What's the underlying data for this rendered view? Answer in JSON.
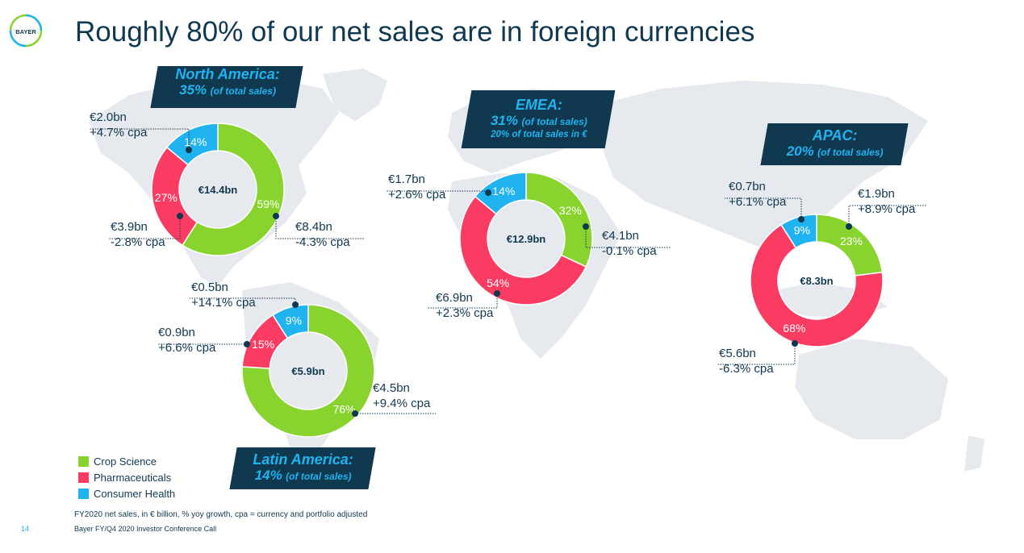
{
  "header": {
    "title": "Roughly 80% of our net sales are in foreign currencies",
    "logo_text": "BAYER"
  },
  "colors": {
    "crop_science": "#89d32f",
    "pharmaceuticals": "#fb3c62",
    "consumer_health": "#1fb4f0",
    "navy": "#10384f",
    "map": "#e6e9ed"
  },
  "legend": [
    {
      "label": "Crop Science",
      "color": "#89d32f"
    },
    {
      "label": "Pharmaceuticals",
      "color": "#fb3c62"
    },
    {
      "label": "Consumer Health",
      "color": "#1fb4f0"
    }
  ],
  "regions": [
    {
      "name": "North America:",
      "share": "35%",
      "share_note": "(of total sales)",
      "extra": ""
    },
    {
      "name": "EMEA:",
      "share": "31%",
      "share_note": "(of total sales)",
      "extra": "20% of total sales in €"
    },
    {
      "name": "APAC:",
      "share": "20%",
      "share_note": "(of total sales)",
      "extra": ""
    },
    {
      "name": "Latin America:",
      "share": "14%",
      "share_note": "(of total sales)",
      "extra": ""
    }
  ],
  "chart_data": [
    {
      "type": "pie",
      "region": "North America",
      "total": "€14.4bn",
      "categories": [
        "Crop Science",
        "Pharmaceuticals",
        "Consumer Health"
      ],
      "values": [
        59,
        27,
        14
      ],
      "value_labels": [
        "59%",
        "27%",
        "14%"
      ],
      "annotations": [
        {
          "amount": "€8.4bn",
          "growth": "-4.3% cpa"
        },
        {
          "amount": "€3.9bn",
          "growth": "-2.8% cpa"
        },
        {
          "amount": "€2.0bn",
          "growth": "+4.7% cpa"
        }
      ]
    },
    {
      "type": "pie",
      "region": "EMEA",
      "total": "€12.9bn",
      "categories": [
        "Crop Science",
        "Pharmaceuticals",
        "Consumer Health"
      ],
      "values": [
        32,
        54,
        14
      ],
      "value_labels": [
        "32%",
        "54%",
        "14%"
      ],
      "annotations": [
        {
          "amount": "€4.1bn",
          "growth": "-0.1% cpa"
        },
        {
          "amount": "€6.9bn",
          "growth": "+2.3% cpa"
        },
        {
          "amount": "€1.7bn",
          "growth": "+2.6% cpa"
        }
      ]
    },
    {
      "type": "pie",
      "region": "APAC",
      "total": "€8.3bn",
      "categories": [
        "Crop Science",
        "Pharmaceuticals",
        "Consumer Health"
      ],
      "values": [
        23,
        68,
        9
      ],
      "value_labels": [
        "23%",
        "68%",
        "9%"
      ],
      "annotations": [
        {
          "amount": "€1.9bn",
          "growth": "+8.9% cpa"
        },
        {
          "amount": "€5.6bn",
          "growth": "-6.3% cpa"
        },
        {
          "amount": "€0.7bn",
          "growth": "+6.1% cpa"
        }
      ]
    },
    {
      "type": "pie",
      "region": "Latin America",
      "total": "€5.9bn",
      "categories": [
        "Crop Science",
        "Pharmaceuticals",
        "Consumer Health"
      ],
      "values": [
        76,
        15,
        9
      ],
      "value_labels": [
        "76%",
        "15%",
        "9%"
      ],
      "annotations": [
        {
          "amount": "€4.5bn",
          "growth": "+9.4% cpa"
        },
        {
          "amount": "€0.9bn",
          "growth": "+6.6% cpa"
        },
        {
          "amount": "€0.5bn",
          "growth": "+14.1% cpa"
        }
      ]
    }
  ],
  "footnote": "FY2020 net sales, in € billion, % yoy growth, cpa = currency and portfolio adjusted",
  "footer": "Bayer FY/Q4 2020 Investor Conference Call",
  "page_number": "14"
}
